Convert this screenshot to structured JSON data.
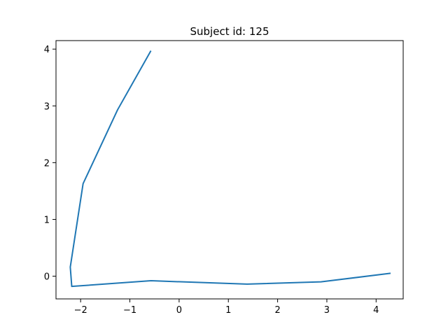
{
  "chart_data": {
    "type": "line",
    "title": "Subject id: 125",
    "xlabel": "",
    "ylabel": "",
    "xlim": [
      -2.5,
      4.55
    ],
    "ylim": [
      -0.4,
      4.15
    ],
    "xticks": [
      -2,
      -1,
      0,
      1,
      2,
      3,
      4
    ],
    "xtick_labels": [
      "−2",
      "−1",
      "0",
      "1",
      "2",
      "3",
      "4"
    ],
    "yticks": [
      0,
      1,
      2,
      3,
      4
    ],
    "ytick_labels": [
      "0",
      "1",
      "2",
      "3",
      "4"
    ],
    "grid": false,
    "legend": false,
    "series": [
      {
        "color": "#1f77b4",
        "x": [
          -0.58,
          -1.25,
          -1.95,
          -2.21,
          -2.18,
          -0.57,
          1.38,
          2.88,
          4.28
        ],
        "y": [
          3.96,
          2.93,
          1.63,
          0.16,
          -0.18,
          -0.08,
          -0.14,
          -0.1,
          0.05
        ]
      }
    ]
  }
}
